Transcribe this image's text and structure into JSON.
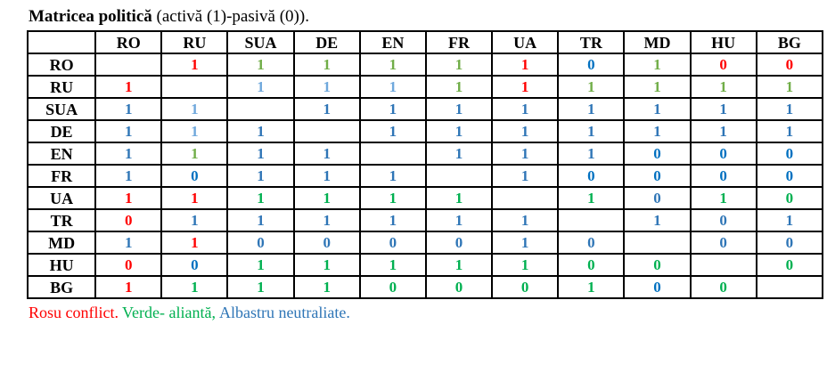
{
  "title": {
    "bold": "Matricea politică",
    "rest": " (activă (1)-pasivă (0))."
  },
  "colors": {
    "r": "#FF0000",
    "go": "#70AD47",
    "gb": "#00B050",
    "bm": "#2E75B6",
    "bb": "#0070C0",
    "bl": "#6FA8DC"
  },
  "legend": {
    "red_label": "Rosu conflict.",
    "green_label": "Verde- aliantă,",
    "blue_label": "Albastru neutraliate.",
    "red_color": "#FF0000",
    "green_color": "#00B050",
    "blue_color": "#2E75B6"
  },
  "chart_data": {
    "type": "table",
    "title": "Matricea politică (activă (1)-pasivă (0))",
    "legend_note": "red = conflict, green = alliance, blue = neutrality; 1 = active, 0 = passive",
    "columns": [
      "RO",
      "RU",
      "SUA",
      "DE",
      "EN",
      "FR",
      "UA",
      "TR",
      "MD",
      "HU",
      "BG"
    ],
    "rows": [
      "RO",
      "RU",
      "SUA",
      "DE",
      "EN",
      "FR",
      "UA",
      "TR",
      "MD",
      "HU",
      "BG"
    ],
    "cells": [
      [
        null,
        {
          "v": "1",
          "c": "r"
        },
        {
          "v": "1",
          "c": "go"
        },
        {
          "v": "1",
          "c": "go"
        },
        {
          "v": "1",
          "c": "go"
        },
        {
          "v": "1",
          "c": "go"
        },
        {
          "v": "1",
          "c": "r"
        },
        {
          "v": "0",
          "c": "bb"
        },
        {
          "v": "1",
          "c": "go"
        },
        {
          "v": "0",
          "c": "r"
        },
        {
          "v": "0",
          "c": "r"
        }
      ],
      [
        {
          "v": "1",
          "c": "r"
        },
        null,
        {
          "v": "1",
          "c": "bl"
        },
        {
          "v": "1",
          "c": "bl"
        },
        {
          "v": "1",
          "c": "bl"
        },
        {
          "v": "1",
          "c": "go"
        },
        {
          "v": "1",
          "c": "r"
        },
        {
          "v": "1",
          "c": "go"
        },
        {
          "v": "1",
          "c": "go"
        },
        {
          "v": "1",
          "c": "go"
        },
        {
          "v": "1",
          "c": "go"
        }
      ],
      [
        {
          "v": "1",
          "c": "bm"
        },
        {
          "v": "1",
          "c": "bl"
        },
        null,
        {
          "v": "1",
          "c": "bm"
        },
        {
          "v": "1",
          "c": "bm"
        },
        {
          "v": "1",
          "c": "bm"
        },
        {
          "v": "1",
          "c": "bm"
        },
        {
          "v": "1",
          "c": "bm"
        },
        {
          "v": "1",
          "c": "bm"
        },
        {
          "v": "1",
          "c": "bm"
        },
        {
          "v": "1",
          "c": "bm"
        }
      ],
      [
        {
          "v": "1",
          "c": "bm"
        },
        {
          "v": "1",
          "c": "bl"
        },
        {
          "v": "1",
          "c": "bm"
        },
        null,
        {
          "v": "1",
          "c": "bm"
        },
        {
          "v": "1",
          "c": "bm"
        },
        {
          "v": "1",
          "c": "bm"
        },
        {
          "v": "1",
          "c": "bm"
        },
        {
          "v": "1",
          "c": "bm"
        },
        {
          "v": "1",
          "c": "bm"
        },
        {
          "v": "1",
          "c": "bm"
        }
      ],
      [
        {
          "v": "1",
          "c": "bm"
        },
        {
          "v": "1",
          "c": "go"
        },
        {
          "v": "1",
          "c": "bm"
        },
        {
          "v": "1",
          "c": "bm"
        },
        null,
        {
          "v": "1",
          "c": "bm"
        },
        {
          "v": "1",
          "c": "bm"
        },
        {
          "v": "1",
          "c": "bm"
        },
        {
          "v": "0",
          "c": "bb"
        },
        {
          "v": "0",
          "c": "bb"
        },
        {
          "v": "0",
          "c": "bb"
        }
      ],
      [
        {
          "v": "1",
          "c": "bm"
        },
        {
          "v": "0",
          "c": "bb"
        },
        {
          "v": "1",
          "c": "bm"
        },
        {
          "v": "1",
          "c": "bm"
        },
        {
          "v": "1",
          "c": "bm"
        },
        null,
        {
          "v": "1",
          "c": "bm"
        },
        {
          "v": "0",
          "c": "bb"
        },
        {
          "v": "0",
          "c": "bb"
        },
        {
          "v": "0",
          "c": "bb"
        },
        {
          "v": "0",
          "c": "bb"
        }
      ],
      [
        {
          "v": "1",
          "c": "r"
        },
        {
          "v": "1",
          "c": "r"
        },
        {
          "v": "1",
          "c": "gb"
        },
        {
          "v": "1",
          "c": "gb"
        },
        {
          "v": "1",
          "c": "gb"
        },
        {
          "v": "1",
          "c": "gb"
        },
        null,
        {
          "v": "1",
          "c": "gb"
        },
        {
          "v": "0",
          "c": "bm"
        },
        {
          "v": "1",
          "c": "gb"
        },
        {
          "v": "0",
          "c": "gb"
        }
      ],
      [
        {
          "v": "0",
          "c": "r"
        },
        {
          "v": "1",
          "c": "bm"
        },
        {
          "v": "1",
          "c": "bm"
        },
        {
          "v": "1",
          "c": "bm"
        },
        {
          "v": "1",
          "c": "bm"
        },
        {
          "v": "1",
          "c": "bm"
        },
        {
          "v": "1",
          "c": "bm"
        },
        null,
        {
          "v": "1",
          "c": "bm"
        },
        {
          "v": "0",
          "c": "bm"
        },
        {
          "v": "1",
          "c": "bm"
        }
      ],
      [
        {
          "v": "1",
          "c": "bm"
        },
        {
          "v": "1",
          "c": "r"
        },
        {
          "v": "0",
          "c": "bm"
        },
        {
          "v": "0",
          "c": "bm"
        },
        {
          "v": "0",
          "c": "bm"
        },
        {
          "v": "0",
          "c": "bm"
        },
        {
          "v": "1",
          "c": "bm"
        },
        {
          "v": "0",
          "c": "bm"
        },
        null,
        {
          "v": "0",
          "c": "bm"
        },
        {
          "v": "0",
          "c": "bm"
        }
      ],
      [
        {
          "v": "0",
          "c": "r"
        },
        {
          "v": "0",
          "c": "bb"
        },
        {
          "v": "1",
          "c": "gb"
        },
        {
          "v": "1",
          "c": "gb"
        },
        {
          "v": "1",
          "c": "gb"
        },
        {
          "v": "1",
          "c": "gb"
        },
        {
          "v": "1",
          "c": "gb"
        },
        {
          "v": "0",
          "c": "gb"
        },
        {
          "v": "0",
          "c": "gb"
        },
        null,
        {
          "v": "0",
          "c": "gb"
        }
      ],
      [
        {
          "v": "1",
          "c": "r"
        },
        {
          "v": "1",
          "c": "gb"
        },
        {
          "v": "1",
          "c": "gb"
        },
        {
          "v": "1",
          "c": "gb"
        },
        {
          "v": "0",
          "c": "gb"
        },
        {
          "v": "0",
          "c": "gb"
        },
        {
          "v": "0",
          "c": "gb"
        },
        {
          "v": "1",
          "c": "gb"
        },
        {
          "v": "0",
          "c": "bb"
        },
        {
          "v": "0",
          "c": "gb"
        },
        null
      ]
    ]
  }
}
